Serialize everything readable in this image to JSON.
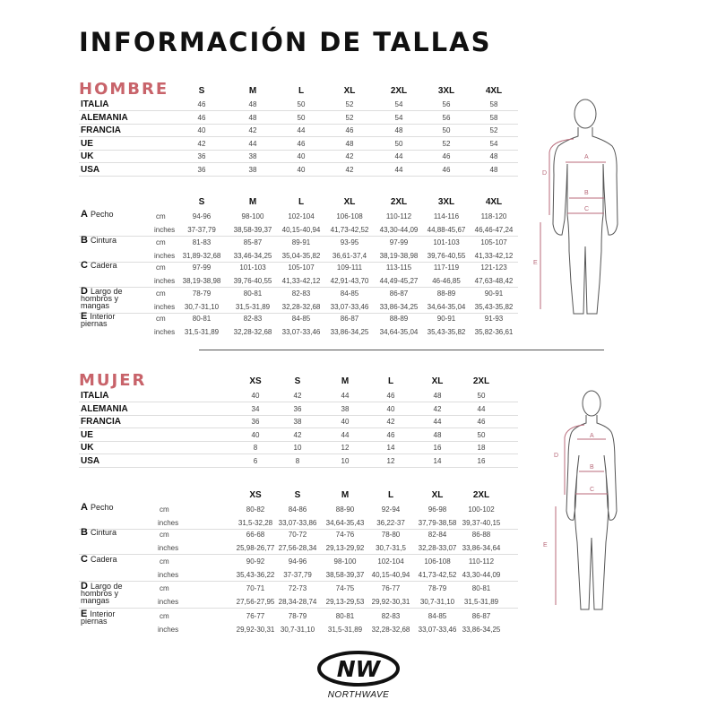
{
  "title": "INFORMACIÓN DE TALLAS",
  "colors": {
    "accent": "#c8636a",
    "text": "#111111"
  },
  "hombre": {
    "label": "HOMBRE",
    "sizes": [
      "S",
      "M",
      "L",
      "XL",
      "2XL",
      "3XL",
      "4XL"
    ],
    "countries": [
      {
        "name": "ITALIA",
        "values": [
          "46",
          "48",
          "50",
          "52",
          "54",
          "56",
          "58"
        ]
      },
      {
        "name": "ALEMANIA",
        "values": [
          "46",
          "48",
          "50",
          "52",
          "54",
          "56",
          "58"
        ]
      },
      {
        "name": "FRANCIA",
        "values": [
          "40",
          "42",
          "44",
          "46",
          "48",
          "50",
          "52"
        ]
      },
      {
        "name": "UE",
        "values": [
          "42",
          "44",
          "46",
          "48",
          "50",
          "52",
          "54"
        ]
      },
      {
        "name": "UK",
        "values": [
          "36",
          "38",
          "40",
          "42",
          "44",
          "46",
          "48"
        ]
      },
      {
        "name": "USA",
        "values": [
          "36",
          "38",
          "40",
          "42",
          "44",
          "46",
          "48"
        ]
      }
    ],
    "measures": [
      {
        "letter": "A",
        "name": "Pecho",
        "cm": [
          "94-96",
          "98-100",
          "102-104",
          "106-108",
          "110-112",
          "114-116",
          "118-120"
        ],
        "inches": [
          "37-37,79",
          "38,58-39,37",
          "40,15-40,94",
          "41,73-42,52",
          "43,30-44,09",
          "44,88-45,67",
          "46,46-47,24"
        ]
      },
      {
        "letter": "B",
        "name": "Cintura",
        "cm": [
          "81-83",
          "85-87",
          "89-91",
          "93-95",
          "97-99",
          "101-103",
          "105-107"
        ],
        "inches": [
          "31,89-32,68",
          "33,46-34,25",
          "35,04-35,82",
          "36,61-37,4",
          "38,19-38,98",
          "39,76-40,55",
          "41,33-42,12"
        ]
      },
      {
        "letter": "C",
        "name": "Cadera",
        "cm": [
          "97-99",
          "101-103",
          "105-107",
          "109-111",
          "113-115",
          "117-119",
          "121-123"
        ],
        "inches": [
          "38,19-38,98",
          "39,76-40,55",
          "41,33-42,12",
          "42,91-43,70",
          "44,49-45,27",
          "46-46,85",
          "47,63-48,42"
        ]
      },
      {
        "letter": "D",
        "name": "Largo de hombros y mangas",
        "cm": [
          "78-79",
          "80-81",
          "82-83",
          "84-85",
          "86-87",
          "88-89",
          "90-91"
        ],
        "inches": [
          "30,7-31,10",
          "31,5-31,89",
          "32,28-32,68",
          "33,07-33,46",
          "33,86-34,25",
          "34,64-35,04",
          "35,43-35,82"
        ]
      },
      {
        "letter": "E",
        "name": "Interior piernas",
        "cm": [
          "80-81",
          "82-83",
          "84-85",
          "86-87",
          "88-89",
          "90-91",
          "91-93"
        ],
        "inches": [
          "31,5-31,89",
          "32,28-32,68",
          "33,07-33,46",
          "33,86-34,25",
          "34,64-35,04",
          "35,43-35,82",
          "35,82-36,61"
        ]
      }
    ]
  },
  "mujer": {
    "label": "MUJER",
    "sizes": [
      "XS",
      "S",
      "M",
      "L",
      "XL",
      "2XL"
    ],
    "countries": [
      {
        "name": "ITALIA",
        "values": [
          "40",
          "42",
          "44",
          "46",
          "48",
          "50"
        ]
      },
      {
        "name": "ALEMANIA",
        "values": [
          "34",
          "36",
          "38",
          "40",
          "42",
          "44"
        ]
      },
      {
        "name": "FRANCIA",
        "values": [
          "36",
          "38",
          "40",
          "42",
          "44",
          "46"
        ]
      },
      {
        "name": "UE",
        "values": [
          "40",
          "42",
          "44",
          "46",
          "48",
          "50"
        ]
      },
      {
        "name": "UK",
        "values": [
          "8",
          "10",
          "12",
          "14",
          "16",
          "18"
        ]
      },
      {
        "name": "USA",
        "values": [
          "6",
          "8",
          "10",
          "12",
          "14",
          "16"
        ]
      }
    ],
    "measures": [
      {
        "letter": "A",
        "name": "Pecho",
        "cm": [
          "80-82",
          "84-86",
          "88-90",
          "92-94",
          "96-98",
          "100-102"
        ],
        "inches": [
          "31,5-32,28",
          "33,07-33,86",
          "34,64-35,43",
          "36,22-37",
          "37,79-38,58",
          "39,37-40,15"
        ]
      },
      {
        "letter": "B",
        "name": "Cintura",
        "cm": [
          "66-68",
          "70-72",
          "74-76",
          "78-80",
          "82-84",
          "86-88"
        ],
        "inches": [
          "25,98-26,77",
          "27,56-28,34",
          "29,13-29,92",
          "30,7-31,5",
          "32,28-33,07",
          "33,86-34,64"
        ]
      },
      {
        "letter": "C",
        "name": "Cadera",
        "cm": [
          "90-92",
          "94-96",
          "98-100",
          "102-104",
          "106-108",
          "110-112"
        ],
        "inches": [
          "35,43-36,22",
          "37-37,79",
          "38,58-39,37",
          "40,15-40,94",
          "41,73-42,52",
          "43,30-44,09"
        ]
      },
      {
        "letter": "D",
        "name": "Largo de hombros y mangas",
        "cm": [
          "70-71",
          "72-73",
          "74-75",
          "76-77",
          "78-79",
          "80-81"
        ],
        "inches": [
          "27,56-27,95",
          "28,34-28,74",
          "29,13-29,53",
          "29,92-30,31",
          "30,7-31,10",
          "31,5-31,89"
        ]
      },
      {
        "letter": "E",
        "name": "Interior piernas",
        "cm": [
          "76-77",
          "78-79",
          "80-81",
          "82-83",
          "84-85",
          "86-87"
        ],
        "inches": [
          "29,92-30,31",
          "30,7-31,10",
          "31,5-31,89",
          "32,28-32,68",
          "33,07-33,46",
          "33,86-34,25"
        ]
      }
    ]
  },
  "units": {
    "cm": "cm",
    "inches": "inches"
  },
  "figure_labels": {
    "a": "A",
    "b": "B",
    "c": "C",
    "d": "D",
    "e": "E"
  },
  "logo": {
    "mark": "NW",
    "wordmark": "NORTHWAVE"
  }
}
